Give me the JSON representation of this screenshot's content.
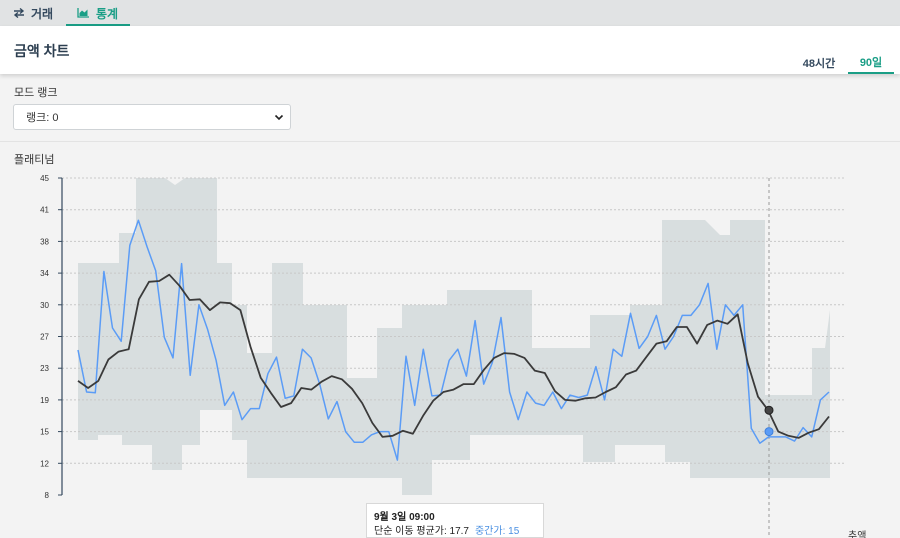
{
  "nav": {
    "tabs": [
      {
        "label": "거래",
        "icon": "swap-arrows-icon"
      },
      {
        "label": "통계",
        "icon": "area-chart-icon"
      }
    ],
    "active": "통계"
  },
  "header": {
    "title": "금액 차트",
    "periods": [
      "48시간",
      "90일"
    ],
    "active_period": "90일"
  },
  "rank": {
    "label": "모드 랭크",
    "selected": "랭크: 0"
  },
  "section": {
    "label": "플래티넘"
  },
  "tooltip": {
    "title": "9월 3일 09:00",
    "sma_label": "단순 이동 평균가: 17.7",
    "median_label": "중간가: 15"
  },
  "footer_cut": "추액",
  "colors": {
    "accent": "#1a9e86",
    "median_line": "#5b9cf6",
    "sma_line": "#3a3a3a",
    "range_band": "#d5dbdd"
  },
  "chart_data": {
    "type": "line",
    "y_ticks": [
      8,
      12,
      15,
      19,
      23,
      27,
      30,
      34,
      38,
      41,
      45
    ],
    "ylim": [
      8,
      45
    ],
    "grid": true,
    "x_count": 100,
    "series": [
      {
        "name": "중간가",
        "values": [
          25.3,
          20,
          19.9,
          34.2,
          27.8,
          26.4,
          37.5,
          40,
          37.3,
          34.3,
          26.9,
          24.3,
          35.2,
          22.1,
          30,
          27.7,
          24,
          18.3,
          20,
          16.5,
          17.9,
          17.9,
          22.3,
          24.4,
          19.2,
          19.5,
          25.4,
          24.3,
          21,
          16.6,
          18.8,
          15,
          14,
          14,
          14.7,
          15,
          15,
          12.3,
          24.5,
          18.3,
          25.4,
          19.5,
          19.6,
          24,
          25.4,
          22,
          28.5,
          21,
          23.7,
          28.8,
          20,
          16.5,
          20,
          18.6,
          18.3,
          20,
          17.9,
          19.6,
          19.3,
          19.6,
          23.2,
          19,
          25.4,
          24.5,
          29.2,
          25.5,
          27,
          29,
          25.4,
          27,
          29,
          29,
          30,
          32.7,
          25.4,
          30,
          29,
          30,
          15.4,
          13.9,
          14.5,
          14.5,
          14.5,
          14.1,
          15.5,
          14.5,
          19,
          20
        ],
        "color": "#5b9cf6"
      },
      {
        "name": "단순 이동 평균가",
        "values": [
          21.4,
          20.5,
          21.4,
          24.1,
          25.1,
          25.4,
          30.7,
          32.9,
          33,
          33.8,
          32.4,
          30.6,
          30.7,
          29.5,
          30.3,
          30.2,
          29.5,
          25.7,
          21.8,
          19.9,
          18.1,
          18.6,
          20.5,
          20.3,
          21.3,
          22,
          21.6,
          20.4,
          18.6,
          16.1,
          14.5,
          14.6,
          15.1,
          14.8,
          17,
          18.9,
          20,
          20.3,
          21,
          21,
          22.8,
          24.3,
          24.9,
          24.8,
          24.3,
          22.7,
          22.4,
          20.1,
          19,
          18.9,
          19.2,
          19.3,
          20,
          20.6,
          22.2,
          22.7,
          24.4,
          26.1,
          26.4,
          27.9,
          27.9,
          26.1,
          28.1,
          28.5,
          28.2,
          29.1,
          23.6,
          19.4,
          17.7,
          15,
          14.6,
          14.4,
          14.9,
          15.3,
          16.9
        ],
        "color": "#3a3a3a"
      }
    ],
    "highlight": {
      "sma": 17.7,
      "median": 15
    }
  }
}
